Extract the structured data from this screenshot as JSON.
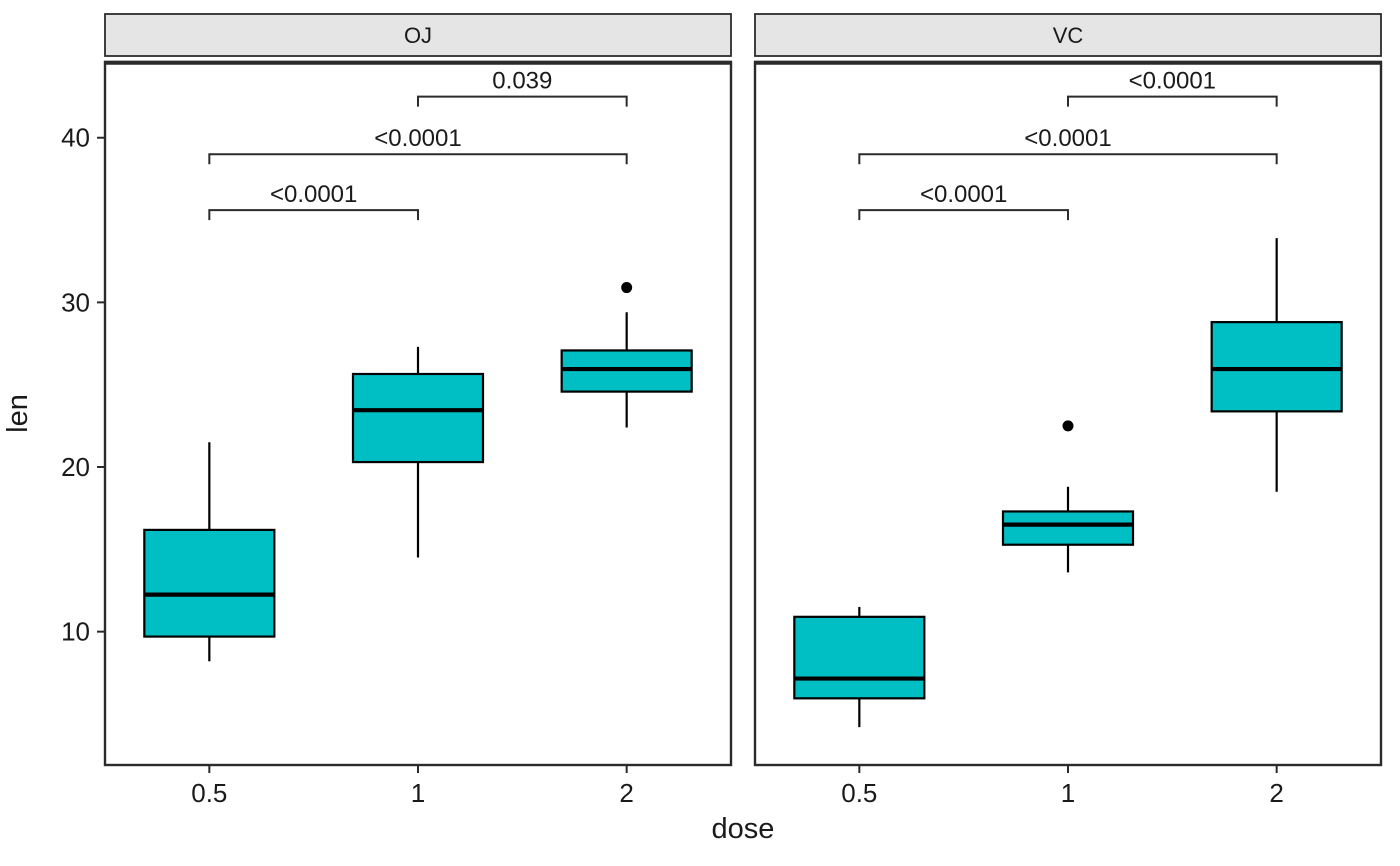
{
  "chart_data": {
    "type": "boxplot",
    "title": "",
    "xlabel": "dose",
    "ylabel": "len",
    "x_categories": [
      "0.5",
      "1",
      "2"
    ],
    "y_ticks": [
      10,
      20,
      30,
      40
    ],
    "ylim": [
      1.9,
      44.6
    ],
    "grid": false,
    "legend": false,
    "colors": {
      "box_fill": "#00BFC4",
      "box_stroke": "#000000",
      "strip_fill": "#E5E5E5",
      "panel_border": "#2b2b2b",
      "bracket": "#2b2b2b",
      "text": "#1a1a1a",
      "background": "#ffffff"
    },
    "facets": [
      {
        "label": "OJ",
        "boxes": [
          {
            "dose": "0.5",
            "whisker_min": 8.2,
            "q1": 9.7,
            "median": 12.25,
            "q3": 16.18,
            "whisker_max": 21.5,
            "outliers": []
          },
          {
            "dose": "1",
            "whisker_min": 14.5,
            "q1": 20.3,
            "median": 23.45,
            "q3": 25.65,
            "whisker_max": 27.3,
            "outliers": []
          },
          {
            "dose": "2",
            "whisker_min": 22.4,
            "q1": 24.58,
            "median": 25.95,
            "q3": 27.08,
            "whisker_max": 29.4,
            "outliers": [
              30.9
            ]
          }
        ],
        "comparisons": [
          {
            "group1": "0.5",
            "group2": "1",
            "label": "<0.0001",
            "y": 35.6
          },
          {
            "group1": "0.5",
            "group2": "2",
            "label": "<0.0001",
            "y": 39.0
          },
          {
            "group1": "1",
            "group2": "2",
            "label": "0.039",
            "y": 42.5
          }
        ]
      },
      {
        "label": "VC",
        "boxes": [
          {
            "dose": "0.5",
            "whisker_min": 4.2,
            "q1": 5.95,
            "median": 7.15,
            "q3": 10.9,
            "whisker_max": 11.5,
            "outliers": []
          },
          {
            "dose": "1",
            "whisker_min": 13.6,
            "q1": 15.28,
            "median": 16.5,
            "q3": 17.3,
            "whisker_max": 18.8,
            "outliers": [
              22.5
            ]
          },
          {
            "dose": "2",
            "whisker_min": 18.5,
            "q1": 23.38,
            "median": 25.95,
            "q3": 28.8,
            "whisker_max": 33.9,
            "outliers": []
          }
        ],
        "comparisons": [
          {
            "group1": "0.5",
            "group2": "1",
            "label": "<0.0001",
            "y": 35.6
          },
          {
            "group1": "0.5",
            "group2": "2",
            "label": "<0.0001",
            "y": 39.0
          },
          {
            "group1": "1",
            "group2": "2",
            "label": "<0.0001",
            "y": 42.5
          }
        ]
      }
    ]
  }
}
